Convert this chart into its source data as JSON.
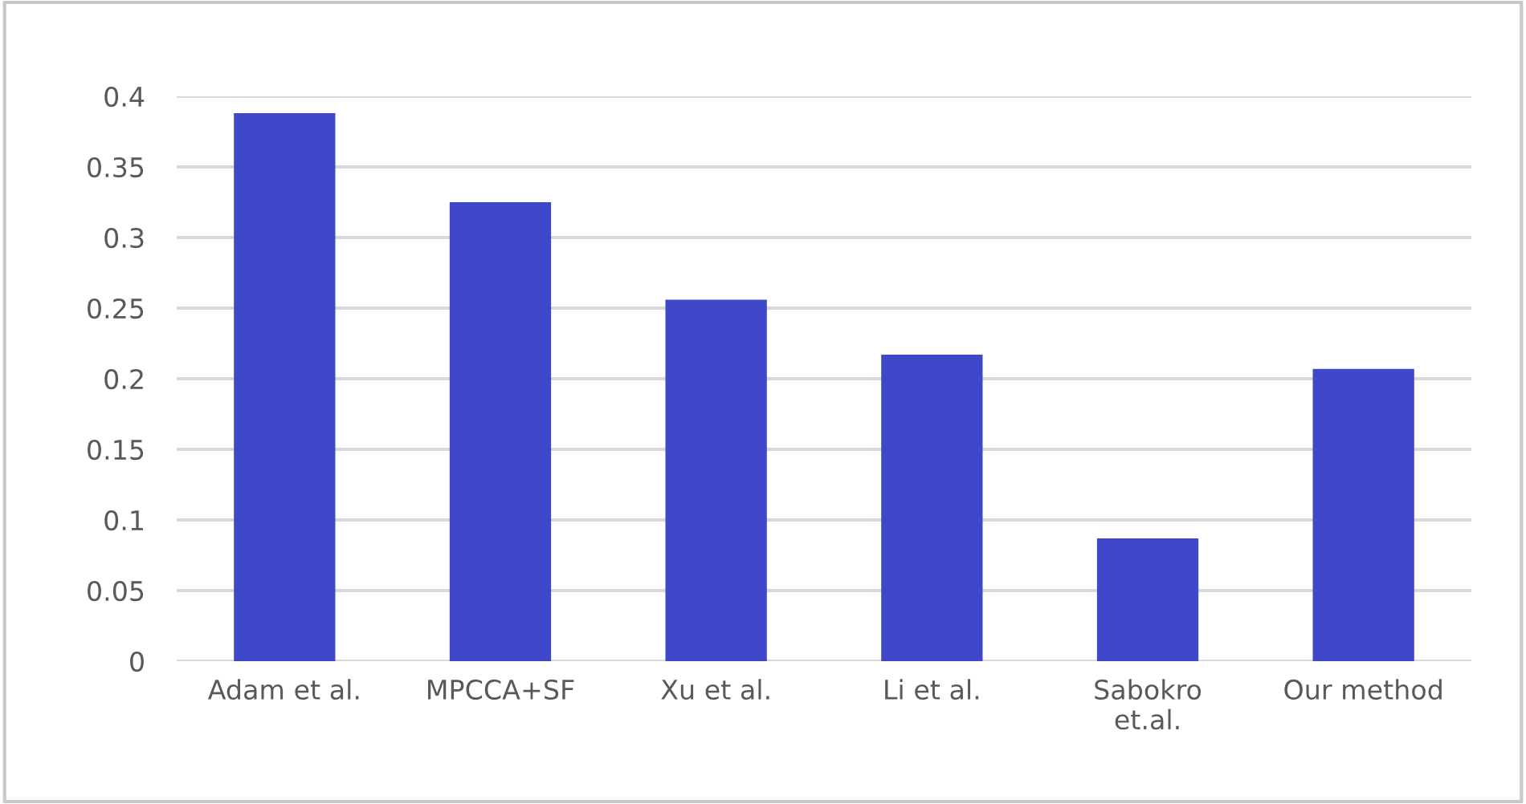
{
  "chart_data": {
    "type": "bar",
    "categories": [
      "Adam et al.",
      "MPCCA+SF",
      "Xu et al.",
      "Li et al.",
      "Sabokro\net.al.",
      "Our method"
    ],
    "values": [
      0.388,
      0.325,
      0.256,
      0.217,
      0.087,
      0.207
    ],
    "color": "#3f48c8",
    "ylim": [
      0,
      0.4
    ],
    "yticks": [
      0,
      0.05,
      0.1,
      0.15,
      0.2,
      0.25,
      0.3,
      0.35,
      0.4
    ],
    "grid": "y",
    "legend": false
  }
}
